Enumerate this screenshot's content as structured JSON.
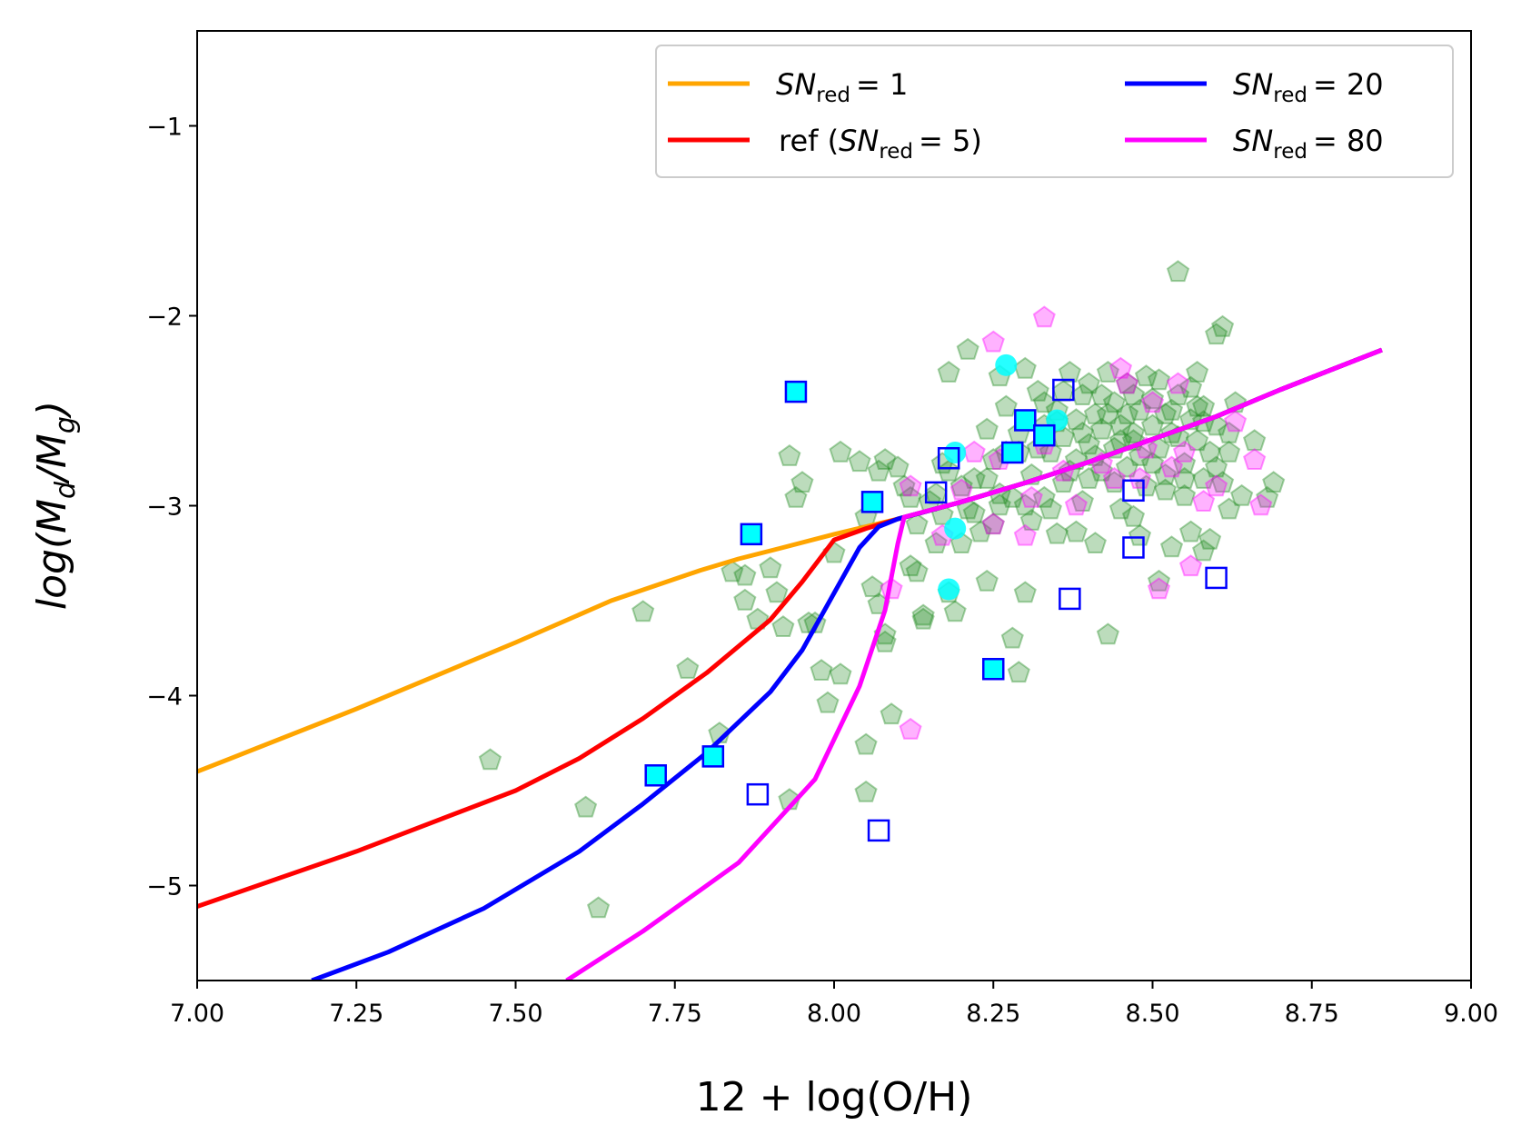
{
  "chart_data": {
    "type": "scatter",
    "xlabel": "12 + log(O/H)",
    "ylabel": "log(M_d/M_g)",
    "ylabel_parts": {
      "prefix": "log(M",
      "d": "d",
      "mid": "/M",
      "g": "g",
      "suffix": ")"
    },
    "xlim": [
      7.0,
      9.0
    ],
    "ylim": [
      -5.5,
      -0.5
    ],
    "xticks": [
      7.0,
      7.25,
      7.5,
      7.75,
      8.0,
      8.25,
      8.5,
      8.75,
      9.0
    ],
    "xtick_labels": [
      "7.00",
      "7.25",
      "7.50",
      "7.75",
      "8.00",
      "8.25",
      "8.50",
      "8.75",
      "9.00"
    ],
    "yticks": [
      -1,
      -2,
      -3,
      -4,
      -5
    ],
    "ytick_labels": [
      "−1",
      "−2",
      "−3",
      "−4",
      "−5"
    ],
    "legend_position": "top-right",
    "colors": {
      "orange": "#FFA500",
      "red": "#FF0000",
      "blue": "#0000FF",
      "magenta": "#FF00FF",
      "green": "#228B22",
      "cyan": "#00FFFF"
    },
    "series": [
      {
        "name": "SN_red = 1",
        "label_sn": "SN",
        "label_sub": "red",
        "label_value": "= 1",
        "color": "#FFA500",
        "x": [
          7.0,
          7.25,
          7.5,
          7.65,
          7.79,
          7.85,
          7.92,
          8.0,
          8.05,
          8.1,
          8.2,
          8.3,
          8.4,
          8.5,
          8.6,
          8.7,
          8.86
        ],
        "y": [
          -4.4,
          -4.07,
          -3.72,
          -3.5,
          -3.34,
          -3.28,
          -3.22,
          -3.15,
          -3.11,
          -3.07,
          -2.98,
          -2.88,
          -2.77,
          -2.65,
          -2.53,
          -2.39,
          -2.18
        ]
      },
      {
        "name": "ref (SN_red = 5)",
        "label_prefix": "ref (",
        "label_sn": "SN",
        "label_sub": "red",
        "label_value": "= 5)",
        "color": "#FF0000",
        "x": [
          7.0,
          7.25,
          7.5,
          7.6,
          7.7,
          7.8,
          7.9,
          7.95,
          8.0,
          8.05,
          8.1,
          8.2,
          8.3,
          8.4,
          8.5,
          8.6,
          8.7,
          8.86
        ],
        "y": [
          -5.11,
          -4.82,
          -4.5,
          -4.33,
          -4.12,
          -3.88,
          -3.6,
          -3.4,
          -3.18,
          -3.12,
          -3.07,
          -2.98,
          -2.88,
          -2.77,
          -2.65,
          -2.53,
          -2.39,
          -2.18
        ]
      },
      {
        "name": "SN_red = 20",
        "label_sn": "SN",
        "label_sub": "red",
        "label_value": "= 20",
        "color": "#0000FF",
        "x": [
          7.18,
          7.3,
          7.45,
          7.6,
          7.7,
          7.8,
          7.9,
          7.95,
          8.0,
          8.04,
          8.07,
          8.1,
          8.2,
          8.3,
          8.4,
          8.5,
          8.6,
          8.7,
          8.86
        ],
        "y": [
          -5.5,
          -5.35,
          -5.12,
          -4.82,
          -4.57,
          -4.3,
          -3.98,
          -3.76,
          -3.46,
          -3.22,
          -3.11,
          -3.07,
          -2.98,
          -2.88,
          -2.77,
          -2.65,
          -2.53,
          -2.39,
          -2.18
        ]
      },
      {
        "name": "SN_red = 80",
        "label_sn": "SN",
        "label_sub": "red",
        "label_value": "= 80",
        "color": "#FF00FF",
        "x": [
          7.58,
          7.7,
          7.85,
          7.97,
          8.04,
          8.08,
          8.1,
          8.11,
          8.2,
          8.3,
          8.4,
          8.5,
          8.6,
          8.7,
          8.86
        ],
        "y": [
          -5.5,
          -5.24,
          -4.88,
          -4.44,
          -3.95,
          -3.55,
          -3.2,
          -3.06,
          -2.98,
          -2.88,
          -2.77,
          -2.65,
          -2.53,
          -2.39,
          -2.18
        ]
      }
    ],
    "scatter_sets": [
      {
        "name": "green pentagons",
        "marker": "pentagon",
        "color": "#228B22",
        "points": [
          [
            7.46,
            -4.34
          ],
          [
            7.61,
            -4.59
          ],
          [
            7.63,
            -5.12
          ],
          [
            7.7,
            -3.56
          ],
          [
            7.77,
            -3.86
          ],
          [
            7.82,
            -4.2
          ],
          [
            7.84,
            -3.35
          ],
          [
            7.86,
            -3.37
          ],
          [
            7.86,
            -3.5
          ],
          [
            7.88,
            -3.6
          ],
          [
            7.9,
            -3.33
          ],
          [
            7.91,
            -3.46
          ],
          [
            7.92,
            -3.64
          ],
          [
            7.93,
            -2.74
          ],
          [
            7.94,
            -2.96
          ],
          [
            7.95,
            -2.88
          ],
          [
            7.96,
            -3.62
          ],
          [
            7.97,
            -3.62
          ],
          [
            7.98,
            -3.87
          ],
          [
            7.99,
            -4.04
          ],
          [
            7.93,
            -4.55
          ],
          [
            8.0,
            -3.25
          ],
          [
            8.01,
            -2.72
          ],
          [
            8.01,
            -3.89
          ],
          [
            8.04,
            -2.77
          ],
          [
            8.05,
            -3.06
          ],
          [
            8.05,
            -4.26
          ],
          [
            8.05,
            -4.51
          ],
          [
            8.06,
            -3.43
          ],
          [
            8.07,
            -3.52
          ],
          [
            8.07,
            -2.82
          ],
          [
            8.08,
            -3.68
          ],
          [
            8.08,
            -2.76
          ],
          [
            8.08,
            -3.72
          ],
          [
            8.09,
            -4.1
          ],
          [
            8.1,
            -2.8
          ],
          [
            8.11,
            -2.9
          ],
          [
            8.12,
            -3.32
          ],
          [
            8.13,
            -3.35
          ],
          [
            8.14,
            -3.58
          ],
          [
            8.14,
            -3.6
          ],
          [
            8.15,
            -2.98
          ],
          [
            8.16,
            -3.2
          ],
          [
            8.17,
            -2.78
          ],
          [
            8.17,
            -3.05
          ],
          [
            8.18,
            -3.46
          ],
          [
            8.18,
            -2.3
          ],
          [
            8.19,
            -3.56
          ],
          [
            8.2,
            -2.9
          ],
          [
            8.21,
            -2.18
          ],
          [
            8.21,
            -3.02
          ],
          [
            8.22,
            -2.86
          ],
          [
            8.23,
            -3.14
          ],
          [
            8.24,
            -2.6
          ],
          [
            8.24,
            -3.4
          ],
          [
            8.25,
            -2.76
          ],
          [
            8.26,
            -3.0
          ],
          [
            8.26,
            -2.32
          ],
          [
            8.27,
            -2.48
          ],
          [
            8.28,
            -2.96
          ],
          [
            8.28,
            -3.7
          ],
          [
            8.29,
            -3.88
          ],
          [
            8.29,
            -2.72
          ],
          [
            8.3,
            -3.46
          ],
          [
            8.3,
            -2.28
          ],
          [
            8.31,
            -3.08
          ],
          [
            8.31,
            -2.84
          ],
          [
            8.32,
            -2.4
          ],
          [
            8.33,
            -2.58
          ],
          [
            8.33,
            -2.96
          ],
          [
            8.34,
            -2.72
          ],
          [
            8.35,
            -3.15
          ],
          [
            8.35,
            -2.5
          ],
          [
            8.36,
            -2.64
          ],
          [
            8.36,
            -2.88
          ],
          [
            8.37,
            -2.3
          ],
          [
            8.38,
            -2.55
          ],
          [
            8.38,
            -2.76
          ],
          [
            8.39,
            -2.42
          ],
          [
            8.39,
            -2.98
          ],
          [
            8.4,
            -2.68
          ],
          [
            8.4,
            -2.36
          ],
          [
            8.41,
            -3.2
          ],
          [
            8.41,
            -2.52
          ],
          [
            8.42,
            -2.82
          ],
          [
            8.42,
            -2.6
          ],
          [
            8.43,
            -3.68
          ],
          [
            8.43,
            -2.3
          ],
          [
            8.44,
            -2.7
          ],
          [
            8.44,
            -2.46
          ],
          [
            8.45,
            -3.02
          ],
          [
            8.45,
            -2.58
          ],
          [
            8.46,
            -2.36
          ],
          [
            8.46,
            -2.8
          ],
          [
            8.47,
            -2.62
          ],
          [
            8.47,
            -3.06
          ],
          [
            8.48,
            -2.5
          ],
          [
            8.48,
            -2.74
          ],
          [
            8.49,
            -2.32
          ],
          [
            8.49,
            -2.9
          ],
          [
            8.5,
            -2.58
          ],
          [
            8.5,
            -2.44
          ],
          [
            8.51,
            -2.7
          ],
          [
            8.51,
            -3.4
          ],
          [
            8.52,
            -2.84
          ],
          [
            8.52,
            -2.52
          ],
          [
            8.53,
            -3.22
          ],
          [
            8.53,
            -2.62
          ],
          [
            8.54,
            -1.77
          ],
          [
            8.54,
            -2.42
          ],
          [
            8.55,
            -2.78
          ],
          [
            8.55,
            -2.95
          ],
          [
            8.56,
            -2.55
          ],
          [
            8.56,
            -3.14
          ],
          [
            8.57,
            -2.66
          ],
          [
            8.57,
            -2.3
          ],
          [
            8.58,
            -2.86
          ],
          [
            8.58,
            -2.48
          ],
          [
            8.59,
            -3.18
          ],
          [
            8.59,
            -2.72
          ],
          [
            8.6,
            -2.58
          ],
          [
            8.6,
            -2.1
          ],
          [
            8.61,
            -2.06
          ],
          [
            8.61,
            -2.88
          ],
          [
            8.62,
            -2.62
          ],
          [
            8.63,
            -2.46
          ],
          [
            8.64,
            -2.95
          ],
          [
            8.66,
            -2.66
          ],
          [
            8.68,
            -2.96
          ],
          [
            8.69,
            -2.88
          ],
          [
            8.58,
            -3.24
          ],
          [
            8.47,
            -2.66
          ],
          [
            8.43,
            -2.52
          ],
          [
            8.37,
            -2.82
          ],
          [
            8.33,
            -2.46
          ],
          [
            8.29,
            -2.62
          ],
          [
            8.26,
            -2.94
          ],
          [
            8.22,
            -3.04
          ],
          [
            8.52,
            -2.92
          ],
          [
            8.56,
            -2.38
          ],
          [
            8.48,
            -3.16
          ],
          [
            8.44,
            -2.88
          ],
          [
            8.35,
            -2.56
          ],
          [
            8.41,
            -2.74
          ],
          [
            8.5,
            -2.78
          ],
          [
            8.54,
            -2.64
          ],
          [
            8.58,
            -2.56
          ],
          [
            8.62,
            -2.72
          ],
          [
            8.39,
            -2.62
          ],
          [
            8.46,
            -2.52
          ],
          [
            8.32,
            -2.7
          ],
          [
            8.25,
            -3.1
          ],
          [
            8.2,
            -3.2
          ],
          [
            8.16,
            -2.94
          ],
          [
            8.13,
            -3.1
          ],
          [
            8.12,
            -2.96
          ],
          [
            8.27,
            -2.72
          ],
          [
            8.3,
            -3.0
          ],
          [
            8.42,
            -2.42
          ],
          [
            8.47,
            -2.42
          ],
          [
            8.53,
            -2.5
          ],
          [
            8.57,
            -2.48
          ],
          [
            8.51,
            -2.34
          ],
          [
            8.45,
            -2.66
          ],
          [
            8.36,
            -2.4
          ],
          [
            8.4,
            -2.86
          ],
          [
            8.55,
            -2.86
          ],
          [
            8.6,
            -2.8
          ],
          [
            8.62,
            -3.02
          ],
          [
            8.38,
            -3.14
          ],
          [
            8.34,
            -3.02
          ],
          [
            8.24,
            -2.86
          ],
          [
            8.18,
            -2.82
          ]
        ]
      },
      {
        "name": "magenta pentagons",
        "marker": "pentagon",
        "color": "#FF00FF",
        "points": [
          [
            8.33,
            -2.01
          ],
          [
            8.25,
            -2.14
          ],
          [
            8.12,
            -2.9
          ],
          [
            8.12,
            -4.18
          ],
          [
            8.09,
            -3.44
          ],
          [
            8.17,
            -3.16
          ],
          [
            8.2,
            -2.92
          ],
          [
            8.22,
            -2.72
          ],
          [
            8.26,
            -2.76
          ],
          [
            8.25,
            -3.1
          ],
          [
            8.3,
            -3.16
          ],
          [
            8.31,
            -2.96
          ],
          [
            8.33,
            -2.68
          ],
          [
            8.36,
            -2.82
          ],
          [
            8.38,
            -3.0
          ],
          [
            8.44,
            -2.86
          ],
          [
            8.45,
            -2.28
          ],
          [
            8.46,
            -2.36
          ],
          [
            8.48,
            -2.86
          ],
          [
            8.49,
            -2.7
          ],
          [
            8.5,
            -2.46
          ],
          [
            8.51,
            -3.44
          ],
          [
            8.53,
            -2.8
          ],
          [
            8.55,
            -2.72
          ],
          [
            8.56,
            -3.32
          ],
          [
            8.58,
            -2.98
          ],
          [
            8.6,
            -2.9
          ],
          [
            8.66,
            -2.76
          ],
          [
            8.67,
            -3.0
          ],
          [
            8.63,
            -2.56
          ],
          [
            8.54,
            -2.36
          ],
          [
            8.42,
            -2.78
          ]
        ]
      },
      {
        "name": "cyan circles",
        "marker": "circle",
        "color": "#00FFFF",
        "points": [
          [
            8.27,
            -2.26
          ],
          [
            8.19,
            -2.72
          ],
          [
            8.18,
            -3.44
          ],
          [
            8.19,
            -3.12
          ],
          [
            8.35,
            -2.55
          ]
        ]
      },
      {
        "name": "filled squares",
        "marker": "square-filled",
        "color": "#00FFFF",
        "edge": "#0000FF",
        "points": [
          [
            7.94,
            -2.4
          ],
          [
            7.87,
            -3.15
          ],
          [
            7.72,
            -4.42
          ],
          [
            7.81,
            -4.32
          ],
          [
            8.06,
            -2.98
          ],
          [
            8.3,
            -2.55
          ],
          [
            8.33,
            -2.63
          ],
          [
            8.28,
            -2.72
          ],
          [
            8.25,
            -3.86
          ]
        ]
      },
      {
        "name": "open squares",
        "marker": "square-open",
        "color": "none",
        "edge": "#0000FF",
        "points": [
          [
            7.88,
            -4.52
          ],
          [
            8.07,
            -4.71
          ],
          [
            8.18,
            -2.75
          ],
          [
            8.16,
            -2.93
          ],
          [
            8.36,
            -2.39
          ],
          [
            8.37,
            -3.49
          ],
          [
            8.47,
            -2.92
          ],
          [
            8.47,
            -3.22
          ],
          [
            8.6,
            -3.38
          ]
        ]
      }
    ]
  }
}
